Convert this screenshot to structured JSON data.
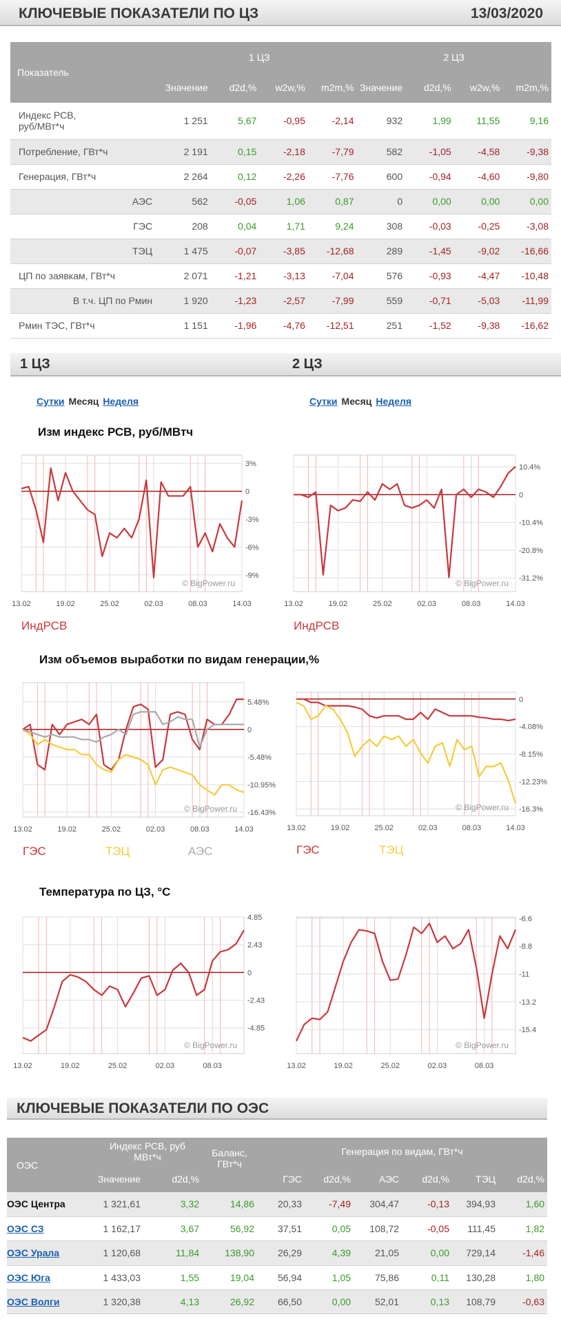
{
  "header": {
    "title": "КЛЮЧЕВЫЕ ПОКАЗАТЕЛИ ПО ЦЗ",
    "date": "13/03/2020"
  },
  "table1": {
    "col_label": "Показатель",
    "groups": [
      "1 ЦЗ",
      "2 ЦЗ"
    ],
    "columns": [
      "Значение",
      "d2d,%",
      "w2w,%",
      "m2m,%",
      "Значение",
      "d2d,%",
      "w2w,%",
      "m2m,%"
    ],
    "rows": [
      [
        "Индекс РСВ,\nруб/МВт*ч",
        "1 251",
        "5,67",
        "-0,95",
        "-2,14",
        "932",
        "1,99",
        "11,55",
        "9,16"
      ],
      [
        "Потребление, ГВт*ч",
        "2 191",
        "0,15",
        "-2,18",
        "-7,79",
        "582",
        "-1,05",
        "-4,58",
        "-9,38"
      ],
      [
        "Генерация, ГВт*ч",
        "2 264",
        "0,12",
        "-2,26",
        "-7,76",
        "600",
        "-0,94",
        "-4,60",
        "-9,80"
      ],
      [
        "АЭС",
        "562",
        "-0,05",
        "1,06",
        "0,87",
        "0",
        "0,00",
        "0,00",
        "0,00"
      ],
      [
        "ГЭС",
        "208",
        "0,04",
        "1,71",
        "9,24",
        "308",
        "-0,03",
        "-0,25",
        "-3,08"
      ],
      [
        "ТЭЦ",
        "1 475",
        "-0,07",
        "-3,85",
        "-12,68",
        "289",
        "-1,45",
        "-9,02",
        "-16,66"
      ],
      [
        "ЦП по заявкам, ГВт*ч",
        "2 071",
        "-1,21",
        "-3,13",
        "-7,04",
        "576",
        "-0,93",
        "-4,47",
        "-10,48"
      ],
      [
        "В т.ч. ЦП по Рмин",
        "1 920",
        "-1,23",
        "-2,57",
        "-7,99",
        "559",
        "-0,71",
        "-5,03",
        "-11,99"
      ],
      [
        "Рмин ТЭС, ГВт*ч",
        "1 151",
        "-1,96",
        "-4,76",
        "-12,51",
        "251",
        "-1,52",
        "-9,38",
        "-16,62"
      ]
    ]
  },
  "zones": [
    "1 ЦЗ",
    "2 ЦЗ"
  ],
  "tabs": [
    "Сутки",
    "Месяц",
    "Неделя"
  ],
  "chart_rows": [
    {
      "title": "Изм индекс РСВ, руб/МВтч",
      "charts": [
        {
          "type": "line",
          "watermark": "© BigPower.ru",
          "categories": [
            "13.02",
            null,
            null,
            null,
            null,
            null,
            "19.02",
            null,
            null,
            null,
            null,
            null,
            "25.02",
            null,
            null,
            null,
            null,
            null,
            "02.03",
            null,
            null,
            null,
            null,
            null,
            "08.03",
            null,
            null,
            null,
            null,
            null,
            "14.03"
          ],
          "series": [
            {
              "name": "ИндРСВ",
              "color": "#c8383c",
              "values": [
                0.3,
                0.5,
                -2,
                -5.5,
                2.5,
                -1,
                2,
                0,
                -1,
                -2,
                -2.5,
                -7,
                -4.5,
                -5,
                -4,
                -5,
                -3,
                1.2,
                -9.3,
                1,
                -0.5,
                -0.5,
                -0.5,
                0.5,
                -6,
                -4.5,
                -6.5,
                -3.5,
                -5,
                -6,
                -1
              ]
            }
          ],
          "ylim": [
            -10.8,
            3.9
          ],
          "yticks": [
            {
              "value": 3,
              "label": "3%"
            },
            0,
            {
              "value": -3,
              "label": "-3%"
            },
            {
              "value": -6,
              "label": "-6%"
            },
            {
              "value": -9,
              "label": "-9%"
            }
          ]
        },
        {
          "type": "line",
          "watermark": "© BigPower.ru",
          "categories": [
            "13.02",
            null,
            null,
            null,
            null,
            null,
            "19.02",
            null,
            null,
            null,
            null,
            null,
            "25.02",
            null,
            null,
            null,
            null,
            null,
            "02.03",
            null,
            null,
            null,
            null,
            null,
            "08.03",
            null,
            null,
            null,
            null,
            null,
            "14.03"
          ],
          "series": [
            {
              "name": "ИндРСВ",
              "color": "#c8383c",
              "values": [
                0,
                0,
                -1,
                1,
                -30,
                -4,
                -6,
                -5,
                -2,
                -2.5,
                1,
                -2,
                4,
                2,
                4,
                -4,
                -5,
                -4,
                -2,
                -5,
                2,
                -31,
                0,
                2,
                -1,
                2,
                1,
                -1,
                3,
                8,
                10.5
              ]
            }
          ],
          "ylim": [
            -36.3,
            14.8
          ],
          "yticks": [
            {
              "value": 10.4,
              "label": "10.4%"
            },
            0,
            {
              "value": -10.4,
              "label": "-10.4%"
            },
            {
              "value": -20.8,
              "label": "-20.8%"
            },
            {
              "value": -31.2,
              "label": "-31.2%"
            }
          ]
        }
      ]
    },
    {
      "title": "Изм объемов выработки по видам генерации,%",
      "charts": [
        {
          "type": "line",
          "watermark": "© BigPower.ru",
          "categories": [
            "13.02",
            null,
            null,
            null,
            null,
            null,
            "19.02",
            null,
            null,
            null,
            null,
            null,
            "25.02",
            null,
            null,
            null,
            null,
            null,
            "02.03",
            null,
            null,
            null,
            null,
            null,
            "08.03",
            null,
            null,
            null,
            null,
            null,
            "14.03"
          ],
          "series": [
            {
              "name": "ГЭС",
              "color": "#c8383c",
              "values": [
                0,
                1,
                -7,
                -8,
                1,
                -1,
                1,
                1.5,
                2,
                1,
                3,
                -7,
                -8,
                -6,
                0,
                4.5,
                5,
                4,
                -7.5,
                -6,
                3,
                3.5,
                3,
                -2,
                -4,
                2,
                1,
                1,
                3,
                6,
                6
              ]
            },
            {
              "name": "ТЭЦ",
              "color": "#f4cc3c",
              "values": [
                0,
                -1,
                -3,
                -2,
                -3,
                -3.5,
                -4,
                -4,
                -5,
                -5,
                -7,
                -8,
                -8.5,
                -6,
                -5,
                -5.5,
                -6,
                -7,
                -11,
                -8,
                -7.5,
                -8,
                -8.5,
                -9,
                -11,
                -12,
                -13,
                -11,
                -11,
                -12,
                -12.5
              ]
            },
            {
              "name": "АЭС",
              "color": "#aaaaaa",
              "values": [
                0,
                -0.5,
                -1,
                -1.5,
                -1,
                -1.5,
                -1.5,
                -1.5,
                -2,
                -2,
                -2.5,
                -1.5,
                -1,
                0,
                -1,
                3,
                3.5,
                3.5,
                3.5,
                1,
                1.5,
                2.5,
                2,
                2,
                -3.5,
                0,
                1,
                1,
                1,
                1,
                1
              ]
            }
          ],
          "ylim": [
            -17.4,
            9.3
          ],
          "yticks": [
            {
              "value": 5.48,
              "label": "5.48%"
            },
            0,
            {
              "value": -5.48,
              "label": "-5.48%"
            },
            {
              "value": -10.95,
              "label": "-10.95%"
            },
            {
              "value": -16.43,
              "label": "-16.43%"
            }
          ]
        },
        {
          "type": "line",
          "watermark": "© BigPower.ru",
          "categories": [
            "13.02",
            null,
            null,
            null,
            null,
            null,
            "19.02",
            null,
            null,
            null,
            null,
            null,
            "25.02",
            null,
            null,
            null,
            null,
            null,
            "02.03",
            null,
            null,
            null,
            null,
            null,
            "08.03",
            null,
            null,
            null,
            null,
            null,
            "14.03"
          ],
          "series": [
            {
              "name": "ГЭС",
              "color": "#c8383c",
              "values": [
                0,
                0,
                -0.5,
                -0.5,
                -1,
                -1,
                -1,
                -1,
                -1.2,
                -1.5,
                -2.5,
                -2.8,
                -2.5,
                -2.5,
                -2.5,
                -3,
                -3,
                -2,
                -3,
                -1.5,
                -2,
                -2.5,
                -2.5,
                -2.5,
                -2.5,
                -2.7,
                -2.8,
                -3,
                -3,
                -3.2,
                -3
              ]
            },
            {
              "name": "ТЭЦ",
              "color": "#f4cc3c",
              "values": [
                -0.5,
                -1,
                -3,
                -2.5,
                -1,
                -1.5,
                -3,
                -5,
                -8.5,
                -7,
                -6,
                -7,
                -5.5,
                -6,
                -5.5,
                -7,
                -6,
                -8,
                -9.5,
                -7,
                -6.5,
                -10,
                -6,
                -7.5,
                -7,
                -11.5,
                -10,
                -10,
                -9.5,
                -12,
                -15.5
              ]
            }
          ],
          "ylim": [
            -17.3,
            1.0
          ],
          "yticks": [
            0,
            {
              "value": -4.08,
              "label": "-4.08%"
            },
            {
              "value": -8.15,
              "label": "-8.15%"
            },
            {
              "value": -12.23,
              "label": "-12.23%"
            },
            {
              "value": -16.3,
              "label": "-16.3%"
            }
          ]
        }
      ]
    },
    {
      "title": "Температура по ЦЗ, °С",
      "charts": [
        {
          "type": "line",
          "watermark": "© BigPower.ru",
          "categories": [
            "13.02",
            null,
            null,
            null,
            null,
            null,
            "19.02",
            null,
            null,
            null,
            null,
            null,
            "25.02",
            null,
            null,
            null,
            null,
            null,
            "02.03",
            null,
            null,
            null,
            null,
            null,
            "08.03",
            null,
            null,
            null,
            null
          ],
          "series": [
            {
              "color": "#c8383c",
              "values": [
                -5.7,
                -6,
                -5.5,
                -5,
                -3,
                -0.8,
                -0.2,
                -0.4,
                -0.8,
                -1.5,
                -2,
                -1.2,
                -1.5,
                -3,
                -1.8,
                -0.5,
                -0.3,
                -2,
                -1.5,
                0.2,
                0.8,
                0,
                -2,
                -1.5,
                1,
                1.8,
                2,
                2.5,
                3.7
              ]
            }
          ],
          "ylim": [
            -7.1,
            4.85
          ],
          "yticks": [
            4.85,
            2.43,
            0,
            -2.43,
            -4.85
          ]
        },
        {
          "type": "line",
          "watermark": "© BigPower.ru",
          "categories": [
            "13.02",
            null,
            null,
            null,
            null,
            null,
            "19.02",
            null,
            null,
            null,
            null,
            null,
            "25.02",
            null,
            null,
            null,
            null,
            null,
            "02.03",
            null,
            null,
            null,
            null,
            null,
            "08.03",
            null,
            null,
            null,
            null
          ],
          "series": [
            {
              "color": "#c8383c",
              "values": [
                -16.3,
                -15,
                -14.5,
                -14.6,
                -14,
                -12,
                -10,
                -8.5,
                -7.5,
                -7.6,
                -7.8,
                -10,
                -11.5,
                -11.4,
                -9.5,
                -7.3,
                -7.8,
                -7,
                -8.5,
                -8,
                -9,
                -8.6,
                -7.5,
                -10.5,
                -14.5,
                -11,
                -8,
                -9,
                -7.5
              ]
            }
          ],
          "ylim": [
            -17.3,
            -6.5
          ],
          "yticks": [
            -6.6,
            -8.8,
            -11,
            -13.2,
            -15.4
          ]
        }
      ]
    }
  ],
  "oes_title": "КЛЮЧЕВЫЕ ПОКАЗАТЕЛИ ПО ОЭС",
  "table2": {
    "col_label": "ОЭС",
    "group_index": "Индекс РСВ, руб\nМВт*ч",
    "group_balance": "Баланс,\nГВт*ч",
    "group_gen": "Генерация по видам, ГВт*ч",
    "columns": [
      "Значение",
      "d2d,%",
      "ГЭС",
      "d2d,%",
      "АЭС",
      "d2d,%",
      "ТЭЦ",
      "d2d,%"
    ],
    "rows": [
      [
        "ОЭС Центра",
        "1 321,61",
        "3,32",
        "14,86",
        "20,33",
        "-7,49",
        "304,47",
        "-0,13",
        "394,93",
        "1,60"
      ],
      [
        "ОЭС СЗ",
        "1 162,17",
        "3,67",
        "56,92",
        "37,51",
        "0,05",
        "108,72",
        "-0,05",
        "111,45",
        "1,82"
      ],
      [
        "ОЭС Урала",
        "1 120,68",
        "11,84",
        "138,90",
        "26,29",
        "4,39",
        "21,05",
        "0,00",
        "729,14",
        "-1,46"
      ],
      [
        "ОЭС Юга",
        "1 433,03",
        "1,55",
        "19,04",
        "56,94",
        "1,05",
        "75,86",
        "0,11",
        "130,28",
        "1,80"
      ],
      [
        "ОЭС Волги",
        "1 320,38",
        "4,13",
        "26,92",
        "66,50",
        "0,00",
        "52,01",
        "0,13",
        "108,79",
        "-0,63"
      ]
    ]
  }
}
